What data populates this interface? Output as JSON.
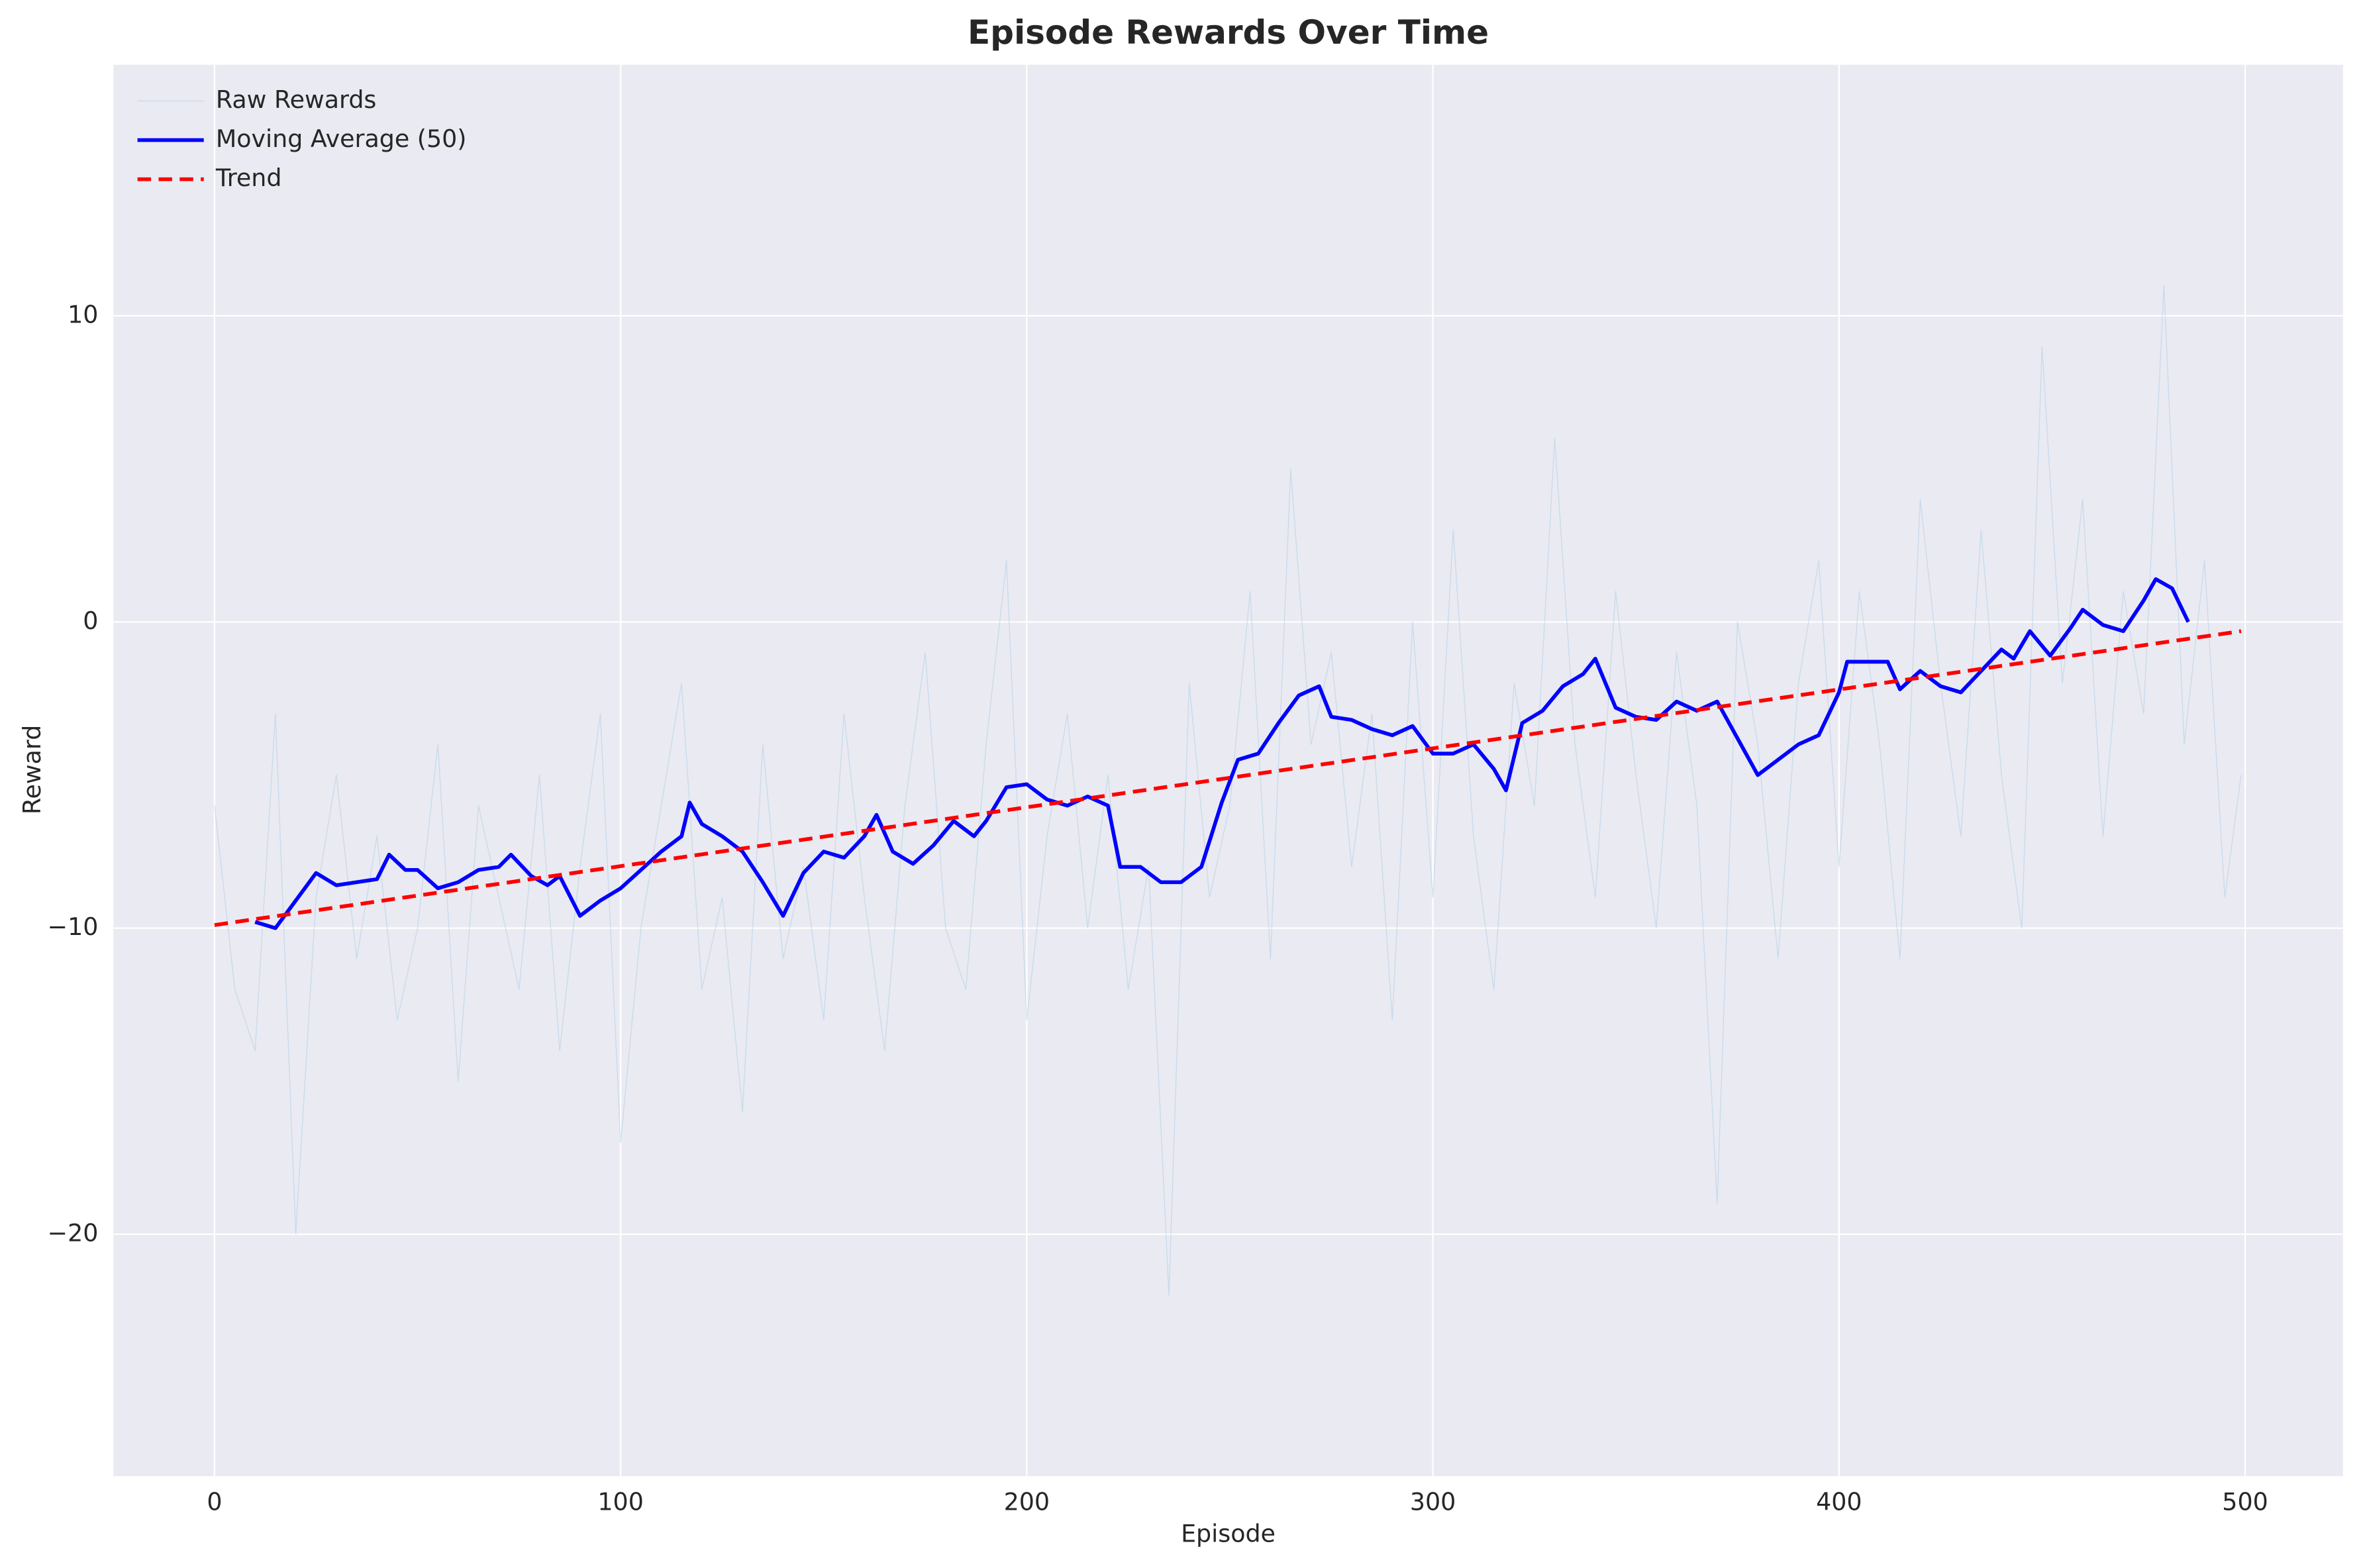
{
  "chart_data": {
    "type": "line",
    "title": "Episode Rewards Over Time",
    "x_label": "Episode",
    "y_label": "Reward",
    "xlim": [
      -24.9,
      524.1
    ],
    "ylim": [
      -27.9,
      18.2
    ],
    "xticks": [
      0,
      100,
      200,
      300,
      400,
      500
    ],
    "yticks": [
      {
        "value": -20,
        "label": "−20"
      },
      {
        "value": -10,
        "label": "−10"
      },
      0,
      10
    ],
    "grid": true,
    "legend": "upper left",
    "series": [
      {
        "name": "Raw Rewards",
        "color": "#a6cee3",
        "style": "solid",
        "width": 0.6,
        "opacity": 0.5,
        "x": [
          0,
          5,
          10,
          15,
          20,
          25,
          30,
          35,
          40,
          45,
          50,
          55,
          60,
          65,
          70,
          75,
          80,
          85,
          90,
          95,
          100,
          105,
          110,
          115,
          120,
          125,
          130,
          135,
          140,
          145,
          150,
          155,
          160,
          165,
          170,
          175,
          180,
          185,
          190,
          195,
          200,
          205,
          210,
          215,
          220,
          225,
          230,
          235,
          240,
          245,
          250,
          255,
          260,
          265,
          270,
          275,
          280,
          285,
          290,
          295,
          300,
          305,
          310,
          315,
          320,
          325,
          330,
          335,
          340,
          345,
          350,
          355,
          360,
          365,
          370,
          375,
          380,
          385,
          390,
          395,
          400,
          405,
          410,
          415,
          420,
          425,
          430,
          435,
          440,
          445,
          450,
          455,
          460,
          465,
          470,
          475,
          480,
          485,
          490,
          495,
          499
        ],
        "values": [
          -6,
          -12,
          -14,
          -3,
          -20,
          -9,
          -5,
          -11,
          -7,
          -13,
          -10,
          -4,
          -15,
          -6,
          -9,
          -12,
          -5,
          -14,
          -8,
          -3,
          -17,
          -10,
          -6,
          -2,
          -12,
          -9,
          -16,
          -4,
          -11,
          -8,
          -13,
          -3,
          -9,
          -14,
          -6,
          -1,
          -10,
          -12,
          -4,
          2,
          -13,
          -7,
          -3,
          -10,
          -5,
          -12,
          -8,
          -22,
          -2,
          -9,
          -6,
          1,
          -11,
          5,
          -4,
          -1,
          -8,
          -3,
          -13,
          0,
          -9,
          3,
          -7,
          -12,
          -2,
          -6,
          6,
          -4,
          -9,
          1,
          -5,
          -10,
          -1,
          -6,
          -19,
          0,
          -4,
          -11,
          -2,
          2,
          -8,
          1,
          -4,
          -11,
          4,
          -2,
          -7,
          3,
          -5,
          -10,
          9,
          -2,
          4,
          -7,
          1,
          -3,
          11,
          -4,
          2,
          -9,
          -5
        ]
      },
      {
        "name": "Moving Average (50)",
        "color": "#0000ff",
        "style": "solid",
        "width": 2.5,
        "opacity": 1,
        "x": [
          10,
          15,
          20,
          25,
          30,
          35,
          40,
          43,
          47,
          50,
          55,
          60,
          65,
          70,
          73,
          78,
          82,
          85,
          90,
          95,
          100,
          105,
          110,
          115,
          117,
          120,
          125,
          130,
          135,
          140,
          145,
          150,
          155,
          160,
          163,
          167,
          172,
          177,
          182,
          187,
          190,
          195,
          200,
          205,
          210,
          215,
          220,
          223,
          228,
          233,
          238,
          243,
          248,
          252,
          257,
          262,
          267,
          272,
          275,
          280,
          285,
          290,
          295,
          300,
          305,
          310,
          315,
          318,
          322,
          327,
          332,
          337,
          340,
          345,
          350,
          355,
          360,
          365,
          370,
          375,
          380,
          385,
          390,
          395,
          400,
          402,
          407,
          412,
          415,
          420,
          425,
          430,
          435,
          440,
          443,
          447,
          452,
          457,
          460,
          465,
          470,
          475,
          478,
          482,
          486
        ],
        "values": [
          -9.8,
          -10.0,
          -9.1,
          -8.2,
          -8.6,
          -8.5,
          -8.4,
          -7.6,
          -8.1,
          -8.1,
          -8.7,
          -8.5,
          -8.1,
          -8.0,
          -7.6,
          -8.3,
          -8.6,
          -8.3,
          -9.6,
          -9.1,
          -8.7,
          -8.1,
          -7.5,
          -7.0,
          -5.9,
          -6.6,
          -7.0,
          -7.5,
          -8.5,
          -9.6,
          -8.2,
          -7.5,
          -7.7,
          -7.0,
          -6.3,
          -7.5,
          -7.9,
          -7.3,
          -6.5,
          -7.0,
          -6.5,
          -5.4,
          -5.3,
          -5.8,
          -6.0,
          -5.7,
          -6.0,
          -8.0,
          -8.0,
          -8.5,
          -8.5,
          -8.0,
          -5.9,
          -4.5,
          -4.3,
          -3.3,
          -2.4,
          -2.1,
          -3.1,
          -3.2,
          -3.5,
          -3.7,
          -3.4,
          -4.3,
          -4.3,
          -4.0,
          -4.8,
          -5.5,
          -3.3,
          -2.9,
          -2.1,
          -1.7,
          -1.2,
          -2.8,
          -3.1,
          -3.2,
          -2.6,
          -2.9,
          -2.6,
          -3.8,
          -5.0,
          -4.5,
          -4.0,
          -3.7,
          -2.3,
          -1.3,
          -1.3,
          -1.3,
          -2.2,
          -1.6,
          -2.1,
          -2.3,
          -1.6,
          -0.9,
          -1.2,
          -0.3,
          -1.1,
          -0.2,
          0.4,
          -0.1,
          -0.3,
          0.7,
          1.4,
          1.1,
          0.0
        ]
      },
      {
        "name": "Trend",
        "color": "#ff0000",
        "style": "dashed",
        "width": 2.5,
        "opacity": 1,
        "x": [
          0,
          499
        ],
        "values": [
          -9.9,
          -0.3
        ]
      }
    ]
  }
}
